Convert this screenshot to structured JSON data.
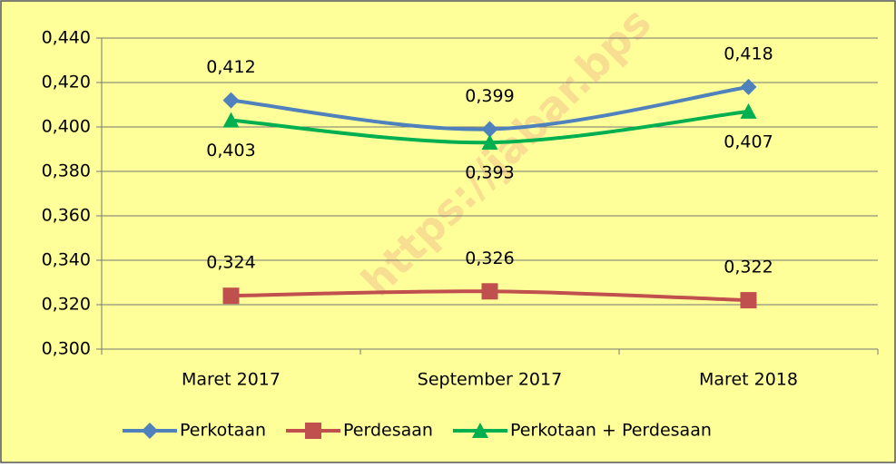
{
  "chart_data": {
    "type": "line",
    "categories": [
      "Maret 2017",
      "September 2017",
      "Maret 2018"
    ],
    "series": [
      {
        "name": "Perkotaan",
        "color": "#4F81BD",
        "marker": "diamond",
        "values": [
          0.412,
          0.399,
          0.418
        ],
        "value_labels": [
          "0,412",
          "0,399",
          "0,418"
        ]
      },
      {
        "name": "Perdesaan",
        "color": "#C0504D",
        "marker": "square",
        "values": [
          0.324,
          0.326,
          0.322
        ],
        "value_labels": [
          "0,324",
          "0,326",
          "0,322"
        ]
      },
      {
        "name": "Perkotaan + Perdesaan",
        "color": "#00B050",
        "marker": "triangle",
        "values": [
          0.403,
          0.393,
          0.407
        ],
        "value_labels": [
          "0,403",
          "0,393",
          "0,407"
        ]
      }
    ],
    "ylim": [
      0.3,
      0.44
    ],
    "yticks": [
      {
        "value": 0.3,
        "label": "0,300"
      },
      {
        "value": 0.32,
        "label": "0,320"
      },
      {
        "value": 0.34,
        "label": "0,340"
      },
      {
        "value": 0.36,
        "label": "0,360"
      },
      {
        "value": 0.38,
        "label": "0,380"
      },
      {
        "value": 0.4,
        "label": "0,400"
      },
      {
        "value": 0.42,
        "label": "0,420"
      },
      {
        "value": 0.44,
        "label": "0,440"
      }
    ],
    "grid": true,
    "legend": "bottom",
    "smooth": true,
    "watermark": "https://jabar.bps"
  }
}
